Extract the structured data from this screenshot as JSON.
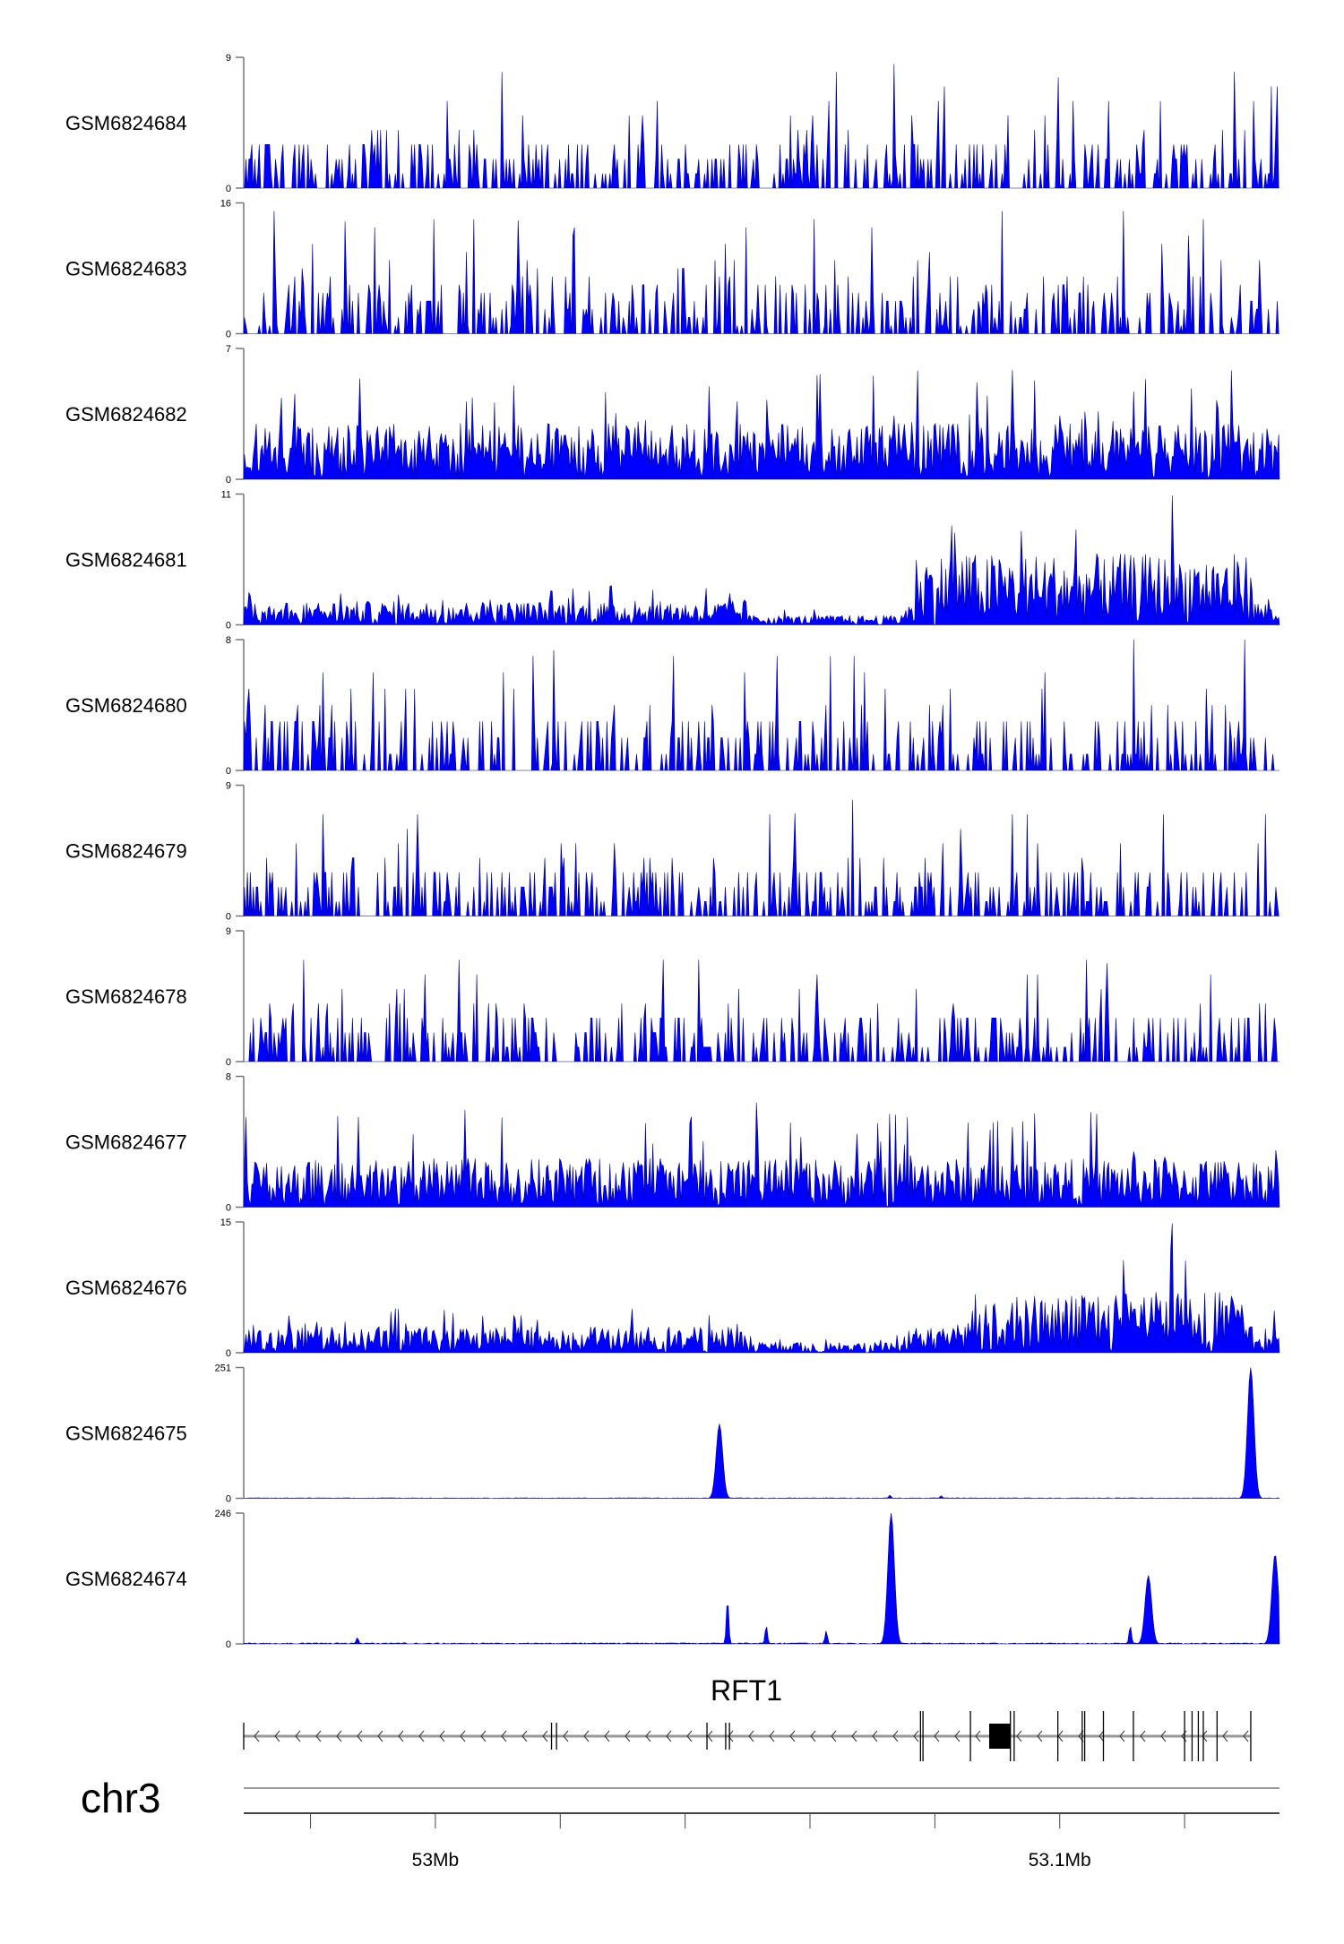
{
  "chart_data": {
    "type": "area",
    "title": "",
    "chromosome": "chr3",
    "xlim_mb": [
      52.9693,
      53.1352
    ],
    "x_ticks_mb": [
      52.98,
      53.0,
      53.02,
      53.04,
      53.06,
      53.08,
      53.1,
      53.12
    ],
    "x_tick_labels": [
      {
        "mb": 53.0,
        "label": "53Mb"
      },
      {
        "mb": 53.1,
        "label": "53.1Mb"
      }
    ],
    "fill_color": "#0000ff",
    "stroke_color": "#00008b",
    "tracks": [
      {
        "name": "GSM6824684",
        "ymin": 0,
        "ymax": 9,
        "y_tick_labels": [
          "0",
          "9"
        ],
        "pattern": "sparse",
        "typical_peak": 4,
        "max_peaks": [
          {
            "mb": 53.0735,
            "value": 9
          },
          {
            "mb": 53.0997,
            "value": 9
          }
        ]
      },
      {
        "name": "GSM6824683",
        "ymin": 0,
        "ymax": 16,
        "y_tick_labels": [
          "0",
          "16"
        ],
        "pattern": "sparse",
        "typical_peak": 8,
        "max_peaks": [
          {
            "mb": 52.9856,
            "value": 16
          },
          {
            "mb": 53.0132,
            "value": 16
          }
        ]
      },
      {
        "name": "GSM6824682",
        "ymin": 0,
        "ymax": 7,
        "y_tick_labels": [
          "0",
          "7"
        ],
        "pattern": "dense",
        "typical_peak": 3,
        "max_peaks": [
          {
            "mb": 53.0925,
            "value": 7
          }
        ]
      },
      {
        "name": "GSM6824681",
        "ymin": 0,
        "ymax": 11,
        "y_tick_labels": [
          "0",
          "11"
        ],
        "pattern": "broad",
        "typical_peak": 2,
        "elevated_region_mb": [
          53.077,
          53.131
        ],
        "elevated_level": 6,
        "max_peaks": [
          {
            "mb": 53.118,
            "value": 11
          }
        ]
      },
      {
        "name": "GSM6824680",
        "ymin": 0,
        "ymax": 8,
        "y_tick_labels": [
          "0",
          "8"
        ],
        "pattern": "sparse",
        "typical_peak": 4,
        "max_peaks": [
          {
            "mb": 53.019,
            "value": 8
          }
        ]
      },
      {
        "name": "GSM6824679",
        "ymin": 0,
        "ymax": 9,
        "y_tick_labels": [
          "0",
          "9"
        ],
        "pattern": "sparse",
        "typical_peak": 4,
        "max_peaks": [
          {
            "mb": 53.0575,
            "value": 9
          }
        ]
      },
      {
        "name": "GSM6824678",
        "ymin": 0,
        "ymax": 9,
        "y_tick_labels": [
          "0",
          "9"
        ],
        "pattern": "sparse",
        "typical_peak": 4,
        "max_peaks": [
          {
            "mb": 53.1075,
            "value": 9
          }
        ]
      },
      {
        "name": "GSM6824677",
        "ymin": 0,
        "ymax": 8,
        "y_tick_labels": [
          "0",
          "8"
        ],
        "pattern": "dense",
        "typical_peak": 3,
        "max_peaks": [
          {
            "mb": 53.0515,
            "value": 8
          }
        ]
      },
      {
        "name": "GSM6824676",
        "ymin": 0,
        "ymax": 15,
        "y_tick_labels": [
          "0",
          "15"
        ],
        "pattern": "broad",
        "typical_peak": 3,
        "elevated_region_mb": [
          53.084,
          53.13
        ],
        "elevated_level": 7,
        "max_peaks": [
          {
            "mb": 53.118,
            "value": 15
          }
        ]
      },
      {
        "name": "GSM6824675",
        "ymin": 0,
        "ymax": 251,
        "y_tick_labels": [
          "0",
          "251"
        ],
        "pattern": "peaks",
        "typical_peak": 1,
        "max_peaks": [
          {
            "mb": 53.0455,
            "value": 143
          },
          {
            "mb": 53.0728,
            "value": 6
          },
          {
            "mb": 53.081,
            "value": 5
          },
          {
            "mb": 53.1306,
            "value": 251
          }
        ]
      },
      {
        "name": "GSM6824674",
        "ymin": 0,
        "ymax": 246,
        "y_tick_labels": [
          "0",
          "246"
        ],
        "pattern": "peaks",
        "typical_peak": 2,
        "max_peaks": [
          {
            "mb": 52.9875,
            "value": 12
          },
          {
            "mb": 53.0468,
            "value": 87
          },
          {
            "mb": 53.053,
            "value": 35
          },
          {
            "mb": 53.0626,
            "value": 25
          },
          {
            "mb": 53.073,
            "value": 246
          },
          {
            "mb": 53.1113,
            "value": 35
          },
          {
            "mb": 53.1142,
            "value": 129
          },
          {
            "mb": 53.1345,
            "value": 169
          }
        ]
      }
    ],
    "gene": {
      "name": "RFT1",
      "strand": "-",
      "start_mb": 52.9693,
      "end_mb": 53.1306,
      "exons_mb": [
        52.9693,
        53.0186,
        53.0194,
        53.0435,
        53.0465,
        53.0471,
        53.0777,
        53.0781,
        53.0857,
        53.0921,
        53.0927,
        53.0997,
        53.1036,
        53.104,
        53.107,
        53.1118,
        53.12,
        53.1212,
        53.1222,
        53.123,
        53.1252,
        53.1306
      ],
      "thick_block_mb": [
        53.0887,
        53.0921
      ]
    }
  }
}
